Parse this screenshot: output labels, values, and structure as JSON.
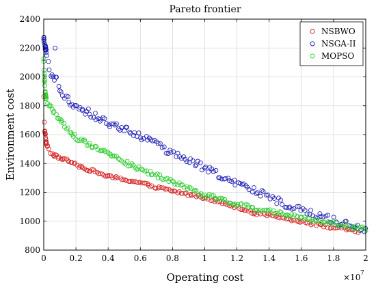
{
  "chart_data": {
    "type": "scatter",
    "title": "Pareto frontier",
    "xlabel": "Operating cost",
    "ylabel": "Environment cost",
    "x_exponent_label": "×10",
    "x_exponent_power": "7",
    "xlim": [
      0,
      2
    ],
    "ylim": [
      800,
      2400
    ],
    "xticks": [
      0,
      0.2,
      0.4,
      0.6,
      0.8,
      1,
      1.2,
      1.4,
      1.6,
      1.8,
      2
    ],
    "xtick_labels": [
      "0",
      "0.2",
      "0.4",
      "0.6",
      "0.8",
      "1",
      "1.2",
      "1.4",
      "1.6",
      "1.8",
      "2"
    ],
    "yticks": [
      800,
      1000,
      1200,
      1400,
      1600,
      1800,
      2000,
      2200,
      2400
    ],
    "ytick_labels": [
      "800",
      "1000",
      "1200",
      "1400",
      "1600",
      "1800",
      "2000",
      "2200",
      "2400"
    ],
    "grid": true,
    "legend_position": "top-right",
    "series": [
      {
        "name": "NSBWO",
        "color": "#d62728",
        "anchors": [
          [
            0,
            1860
          ],
          [
            0.005,
            1640
          ],
          [
            0.01,
            1600
          ],
          [
            0.015,
            1540
          ],
          [
            0.03,
            1500
          ],
          [
            0.05,
            1460
          ],
          [
            0.1,
            1440
          ],
          [
            0.15,
            1420
          ],
          [
            0.2,
            1390
          ],
          [
            0.3,
            1350
          ],
          [
            0.4,
            1310
          ],
          [
            0.5,
            1290
          ],
          [
            0.6,
            1265
          ],
          [
            0.7,
            1235
          ],
          [
            0.8,
            1210
          ],
          [
            0.9,
            1185
          ],
          [
            1.0,
            1165
          ],
          [
            1.1,
            1130
          ],
          [
            1.2,
            1100
          ],
          [
            1.3,
            1060
          ],
          [
            1.4,
            1040
          ],
          [
            1.5,
            1020
          ],
          [
            1.6,
            1000
          ],
          [
            1.7,
            975
          ],
          [
            1.8,
            955
          ],
          [
            1.9,
            940
          ],
          [
            1.95,
            925
          ]
        ],
        "count": 180,
        "x_range": [
          0.003,
          1.95
        ],
        "spread": 10
      },
      {
        "name": "NSGA-II",
        "color": "#1f1fb4",
        "anchors": [
          [
            0,
            2270
          ],
          [
            0.01,
            2200
          ],
          [
            0.02,
            2130
          ],
          [
            0.04,
            2040
          ],
          [
            0.06,
            2000
          ],
          [
            0.08,
            1980
          ],
          [
            0.1,
            1900
          ],
          [
            0.15,
            1840
          ],
          [
            0.2,
            1800
          ],
          [
            0.3,
            1740
          ],
          [
            0.4,
            1680
          ],
          [
            0.5,
            1640
          ],
          [
            0.6,
            1590
          ],
          [
            0.7,
            1530
          ],
          [
            0.8,
            1460
          ],
          [
            0.9,
            1420
          ],
          [
            1.0,
            1370
          ],
          [
            1.1,
            1310
          ],
          [
            1.2,
            1270
          ],
          [
            1.3,
            1220
          ],
          [
            1.4,
            1170
          ],
          [
            1.5,
            1120
          ],
          [
            1.6,
            1080
          ],
          [
            1.7,
            1040
          ],
          [
            1.8,
            1010
          ],
          [
            1.9,
            970
          ],
          [
            2.0,
            935
          ]
        ],
        "count": 175,
        "x_range": [
          0.0,
          2.0
        ],
        "spread": 25,
        "extra_points": [
          [
            0.07,
            2200
          ]
        ]
      },
      {
        "name": "MOPSO",
        "color": "#2ecc2e",
        "anchors": [
          [
            0,
            2120
          ],
          [
            0.005,
            1960
          ],
          [
            0.01,
            1880
          ],
          [
            0.02,
            1810
          ],
          [
            0.05,
            1780
          ],
          [
            0.1,
            1700
          ],
          [
            0.15,
            1640
          ],
          [
            0.2,
            1580
          ],
          [
            0.3,
            1520
          ],
          [
            0.4,
            1480
          ],
          [
            0.5,
            1410
          ],
          [
            0.6,
            1360
          ],
          [
            0.7,
            1320
          ],
          [
            0.8,
            1270
          ],
          [
            0.9,
            1230
          ],
          [
            1.0,
            1180
          ],
          [
            1.1,
            1150
          ],
          [
            1.2,
            1120
          ],
          [
            1.3,
            1090
          ],
          [
            1.4,
            1070
          ],
          [
            1.5,
            1050
          ],
          [
            1.6,
            1020
          ],
          [
            1.7,
            1000
          ],
          [
            1.8,
            980
          ],
          [
            1.9,
            965
          ],
          [
            2.0,
            950
          ]
        ],
        "count": 190,
        "x_range": [
          0.0,
          2.0
        ],
        "spread": 15
      }
    ]
  }
}
